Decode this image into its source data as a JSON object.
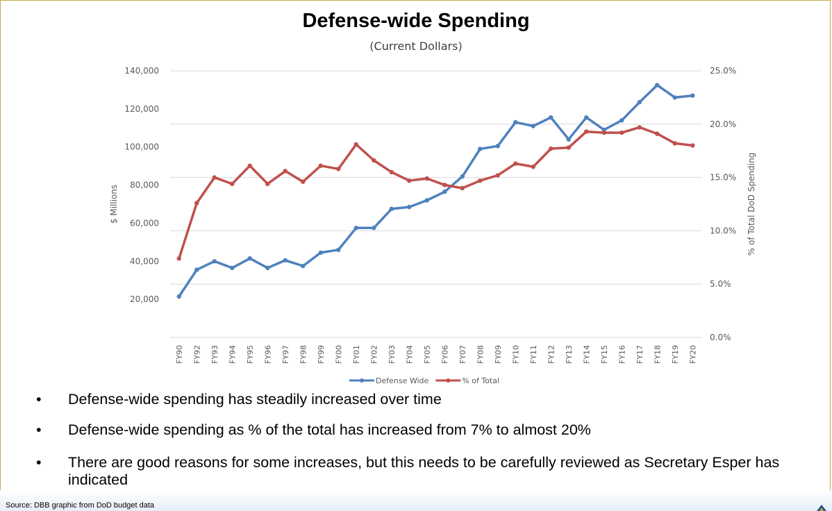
{
  "slide": {
    "title": "Defense-wide Spending",
    "subtitle": "(Current Dollars)",
    "bullets": [
      "Defense-wide spending has steadily increased over time",
      "Defense-wide spending as % of the total has increased from 7% to almost 20%",
      "There are good reasons for some increases, but this needs to be carefully reviewed as Secretary Esper has indicated"
    ],
    "bullet_marker": "•",
    "source": "Source: DBB graphic from DoD budget data"
  },
  "chart_data": {
    "type": "line",
    "title": "Defense-wide Spending",
    "subtitle": "(Current Dollars)",
    "categories": [
      "FY90",
      "FY92",
      "FY93",
      "FY94",
      "FY95",
      "FY96",
      "FY97",
      "FY98",
      "FY99",
      "FY00",
      "FY01",
      "FY02",
      "FY03",
      "FY04",
      "FY05",
      "FY06",
      "FY07",
      "FY08",
      "FY09",
      "FY10",
      "FY11",
      "FY12",
      "FY13",
      "FY14",
      "FY15",
      "FY16",
      "FY17",
      "FY18",
      "FY19",
      "FY20"
    ],
    "series": [
      {
        "name": "Defense Wide",
        "axis": "left",
        "color": "#4f81bd",
        "values": [
          21500,
          35500,
          40000,
          36500,
          41500,
          36500,
          40500,
          37500,
          44500,
          46000,
          57500,
          57500,
          67500,
          68500,
          72000,
          76500,
          84500,
          99000,
          100500,
          113000,
          111000,
          115500,
          104000,
          115500,
          109000,
          114000,
          123500,
          132500,
          126000,
          127000
        ]
      },
      {
        "name": "% of Total",
        "axis": "right",
        "color": "#c0504d",
        "values": [
          7.4,
          12.6,
          15.0,
          14.4,
          16.1,
          14.4,
          15.6,
          14.6,
          16.1,
          15.8,
          18.1,
          16.6,
          15.5,
          14.7,
          14.9,
          14.3,
          14.0,
          14.7,
          15.2,
          16.3,
          16.0,
          17.7,
          17.8,
          19.3,
          19.2,
          19.2,
          19.7,
          19.1,
          18.2,
          18.0
        ]
      }
    ],
    "y_left": {
      "label": "$ Millions",
      "min": 0,
      "max": 140000,
      "ticks": [
        20000,
        40000,
        60000,
        80000,
        100000,
        120000,
        140000
      ],
      "tick_labels": [
        "20,000",
        "40,000",
        "60,000",
        "80,000",
        "100,000",
        "120,000",
        "140,000"
      ]
    },
    "y_right": {
      "label": "% of Total DoD Spending",
      "min": 0,
      "max": 25,
      "ticks": [
        0,
        5,
        10,
        15,
        20,
        25
      ],
      "tick_labels": [
        "0.0%",
        "5.0%",
        "10.0%",
        "15.0%",
        "20.0%",
        "25.0%"
      ]
    },
    "grid": true,
    "legend_position": "bottom"
  }
}
